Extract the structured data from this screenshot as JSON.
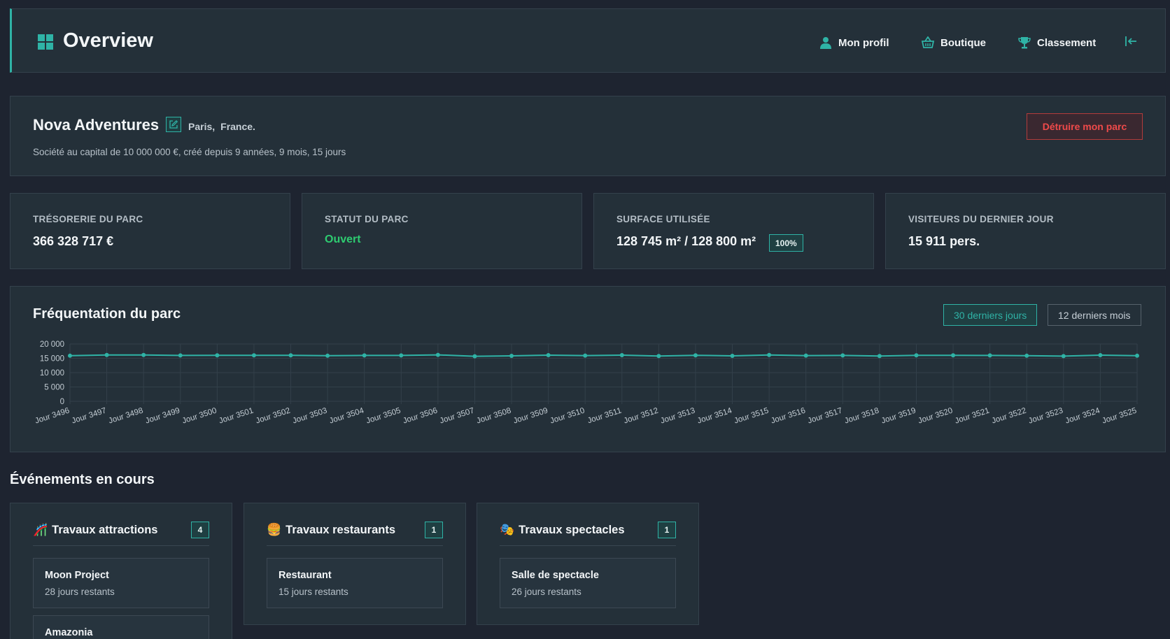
{
  "header": {
    "title": "Overview",
    "nav": {
      "profile": "Mon profil",
      "shop": "Boutique",
      "ranking": "Classement"
    },
    "accent": "#2fb3a6"
  },
  "park": {
    "name": "Nova Adventures",
    "city": "Paris,",
    "country": "France.",
    "description": "Société au capital de 10 000 000 €, créé depuis 9 années, 9 mois, 15 jours",
    "destroy_label": "Détruire mon parc"
  },
  "stats": {
    "treasury": {
      "label": "TRÉSORERIE DU PARC",
      "value": "366 328 717 €"
    },
    "status": {
      "label": "STATUT DU PARC",
      "value": "Ouvert",
      "color": "#2ecc71"
    },
    "surface": {
      "label": "SURFACE UTILISÉE",
      "value": "128 745 m² / 128 800 m²",
      "percent": "100%"
    },
    "visitors": {
      "label": "VISITEURS DU DERNIER JOUR",
      "value": "15 911 pers."
    }
  },
  "chart": {
    "title": "Fréquentation du parc",
    "range_30": "30 derniers jours",
    "range_12": "12 derniers mois"
  },
  "chart_data": {
    "type": "line",
    "title": "Fréquentation du parc",
    "categories": [
      "Jour 3496",
      "Jour 3497",
      "Jour 3498",
      "Jour 3499",
      "Jour 3500",
      "Jour 3501",
      "Jour 3502",
      "Jour 3503",
      "Jour 3504",
      "Jour 3505",
      "Jour 3506",
      "Jour 3507",
      "Jour 3508",
      "Jour 3509",
      "Jour 3510",
      "Jour 3511",
      "Jour 3512",
      "Jour 3513",
      "Jour 3514",
      "Jour 3515",
      "Jour 3516",
      "Jour 3517",
      "Jour 3518",
      "Jour 3519",
      "Jour 3520",
      "Jour 3521",
      "Jour 3522",
      "Jour 3523",
      "Jour 3524",
      "Jour 3525"
    ],
    "values": [
      15900,
      16150,
      16150,
      16000,
      16050,
      16050,
      16050,
      15900,
      16000,
      16000,
      16200,
      15700,
      15850,
      16100,
      15950,
      16100,
      15800,
      16050,
      15850,
      16150,
      15950,
      16000,
      15800,
      16050,
      16050,
      16000,
      15900,
      15750,
      16100,
      15900
    ],
    "ylim": [
      0,
      20000
    ],
    "yticks": [
      "0",
      "5 000",
      "10 000",
      "15 000",
      "20 000"
    ],
    "ytick_values": [
      0,
      5000,
      10000,
      15000,
      20000
    ],
    "line_color": "#2fb3a6",
    "grid": true
  },
  "events": {
    "title": "Événements en cours",
    "cards": [
      {
        "emoji": "🎢",
        "title": "Travaux attractions",
        "count": "4",
        "items": [
          {
            "name": "Moon Project",
            "days": "28 jours restants"
          },
          {
            "name": "Amazonia"
          }
        ]
      },
      {
        "emoji": "🍔",
        "title": "Travaux restaurants",
        "count": "1",
        "items": [
          {
            "name": "Restaurant",
            "days": "15 jours restants"
          }
        ]
      },
      {
        "emoji": "🎭",
        "title": "Travaux spectacles",
        "count": "1",
        "items": [
          {
            "name": "Salle de spectacle",
            "days": "26 jours restants"
          }
        ]
      }
    ]
  }
}
